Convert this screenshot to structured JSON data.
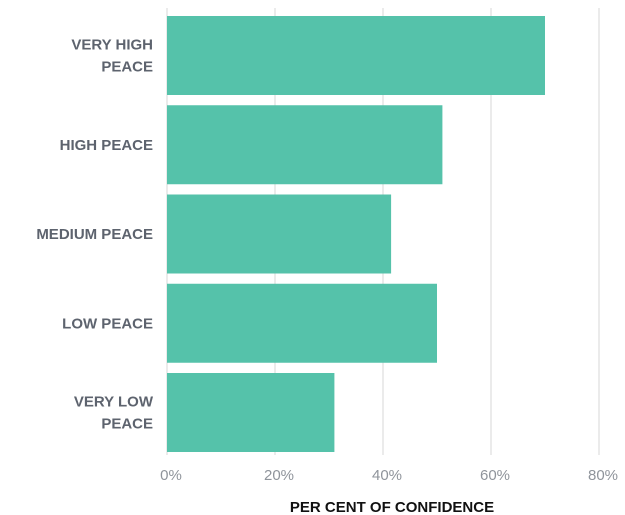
{
  "chart_data": {
    "type": "bar",
    "orientation": "horizontal",
    "categories": [
      [
        "VERY HIGH",
        "PEACE"
      ],
      [
        "HIGH PEACE"
      ],
      [
        "MEDIUM PEACE"
      ],
      [
        "LOW PEACE"
      ],
      [
        "VERY LOW",
        "PEACE"
      ]
    ],
    "values": [
      70,
      51,
      41.5,
      50,
      31
    ],
    "value_unit": "%",
    "xlabel": "PER CENT OF CONFIDENCE",
    "ylabel": "",
    "xlim": [
      0,
      80
    ],
    "xticks": [
      0,
      20,
      40,
      60,
      80
    ],
    "xtick_labels": [
      "0%",
      "20%",
      "40%",
      "60%",
      "80%"
    ],
    "grid": "vertical",
    "legend": "none",
    "bar_color": "#55c2aa",
    "grid_color": "#d7d7d7"
  }
}
